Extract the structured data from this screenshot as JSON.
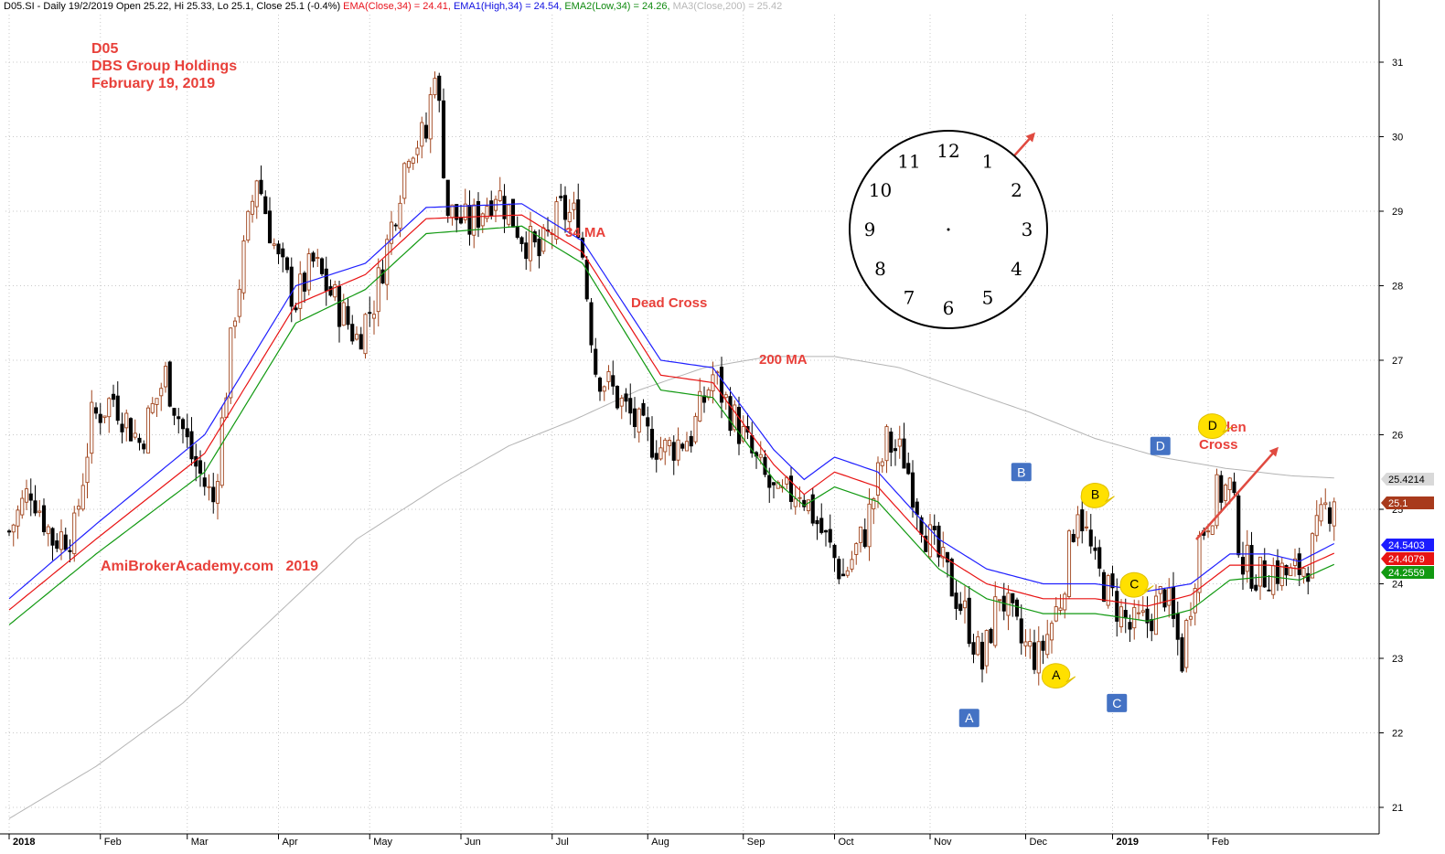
{
  "header": {
    "symbol_info": "D05.SI - Daily 19/2/2019 Open 25.22, Hi 25.33, Lo 25.1, Close 25.1 (-0.4%)",
    "ema_close": "EMA(Close,34) = 24.41,",
    "ema_high": "EMA1(High,34) = 24.54,",
    "ema_low": "EMA2(Low,34) = 24.26,",
    "ma200": "MA3(Close,200) = 25.42",
    "colors": {
      "ema_close": "#e8141e",
      "ema_high": "#1010e0",
      "ema_low": "#108a10",
      "ma200": "#b8b8b8"
    }
  },
  "chart_data": {
    "type": "candlestick",
    "title_lines": [
      "D05",
      "DBS Group Holdings",
      "February 19, 2019"
    ],
    "watermark": "AmiBrokerAcademy.com   2019",
    "ylim": [
      20.6,
      31.8
    ],
    "y_ticks": [
      21,
      22,
      23,
      24,
      25,
      26,
      27,
      28,
      29,
      30,
      31
    ],
    "x_month_labels": [
      {
        "label": "2018",
        "index": 0,
        "bold": true
      },
      {
        "label": "Feb",
        "index": 21
      },
      {
        "label": "Mar",
        "index": 41
      },
      {
        "label": "Apr",
        "index": 62
      },
      {
        "label": "May",
        "index": 83
      },
      {
        "label": "Jun",
        "index": 104
      },
      {
        "label": "Jul",
        "index": 125
      },
      {
        "label": "Aug",
        "index": 147
      },
      {
        "label": "Sep",
        "index": 169
      },
      {
        "label": "Oct",
        "index": 190
      },
      {
        "label": "Nov",
        "index": 212
      },
      {
        "label": "Dec",
        "index": 234
      },
      {
        "label": "2019",
        "index": 254,
        "bold": true
      },
      {
        "label": "Feb",
        "index": 276
      }
    ],
    "close_path": [
      [
        0,
        24.7
      ],
      [
        5,
        25.3
      ],
      [
        10,
        24.6
      ],
      [
        15,
        24.7
      ],
      [
        19,
        26.2
      ],
      [
        24,
        26.5
      ],
      [
        30,
        25.9
      ],
      [
        36,
        26.8
      ],
      [
        42,
        25.7
      ],
      [
        47,
        25.1
      ],
      [
        52,
        27.7
      ],
      [
        57,
        29.5
      ],
      [
        62,
        28.3
      ],
      [
        66,
        27.8
      ],
      [
        70,
        28.3
      ],
      [
        75,
        27.8
      ],
      [
        80,
        27.3
      ],
      [
        84,
        27.8
      ],
      [
        88,
        28.8
      ],
      [
        92,
        29.9
      ],
      [
        96,
        30.0
      ],
      [
        98,
        31.0
      ],
      [
        101,
        29.0
      ],
      [
        106,
        28.8
      ],
      [
        112,
        29.3
      ],
      [
        118,
        28.7
      ],
      [
        122,
        28.4
      ],
      [
        127,
        29.0
      ],
      [
        131,
        28.9
      ],
      [
        135,
        26.9
      ],
      [
        140,
        26.5
      ],
      [
        146,
        26.0
      ],
      [
        151,
        25.8
      ],
      [
        157,
        26.0
      ],
      [
        162,
        26.8
      ],
      [
        167,
        26.2
      ],
      [
        172,
        25.6
      ],
      [
        177,
        25.1
      ],
      [
        182,
        25.3
      ],
      [
        187,
        24.7
      ],
      [
        192,
        24.1
      ],
      [
        197,
        24.7
      ],
      [
        202,
        25.9
      ],
      [
        206,
        25.7
      ],
      [
        211,
        24.7
      ],
      [
        216,
        24.1
      ],
      [
        220,
        23.6
      ],
      [
        224,
        22.9
      ],
      [
        228,
        23.9
      ],
      [
        233,
        23.2
      ],
      [
        237,
        23.0
      ],
      [
        242,
        23.8
      ],
      [
        246,
        25.1
      ],
      [
        250,
        24.2
      ],
      [
        254,
        23.8
      ],
      [
        258,
        23.4
      ],
      [
        262,
        23.5
      ],
      [
        266,
        23.9
      ],
      [
        270,
        23.0
      ],
      [
        274,
        24.6
      ],
      [
        278,
        25.2
      ],
      [
        281,
        25.3
      ],
      [
        284,
        24.3
      ],
      [
        288,
        24.1
      ],
      [
        291,
        24.2
      ],
      [
        295,
        24.1
      ],
      [
        299,
        24.3
      ],
      [
        303,
        25.0
      ],
      [
        305,
        25.1
      ]
    ],
    "ema_high_path": [
      [
        0,
        23.8
      ],
      [
        20,
        24.8
      ],
      [
        45,
        26.0
      ],
      [
        66,
        28.0
      ],
      [
        82,
        28.3
      ],
      [
        96,
        29.05
      ],
      [
        118,
        29.1
      ],
      [
        132,
        28.6
      ],
      [
        150,
        27.0
      ],
      [
        162,
        26.9
      ],
      [
        176,
        25.8
      ],
      [
        183,
        25.4
      ],
      [
        190,
        25.7
      ],
      [
        200,
        25.5
      ],
      [
        214,
        24.6
      ],
      [
        225,
        24.2
      ],
      [
        238,
        24.0
      ],
      [
        250,
        24.0
      ],
      [
        262,
        23.9
      ],
      [
        272,
        24.0
      ],
      [
        281,
        24.4
      ],
      [
        290,
        24.4
      ],
      [
        297,
        24.3
      ],
      [
        305,
        24.54
      ]
    ],
    "ema_close_path": [
      [
        0,
        23.65
      ],
      [
        20,
        24.6
      ],
      [
        45,
        25.75
      ],
      [
        66,
        27.75
      ],
      [
        82,
        28.15
      ],
      [
        96,
        28.9
      ],
      [
        118,
        28.95
      ],
      [
        132,
        28.45
      ],
      [
        150,
        26.8
      ],
      [
        162,
        26.7
      ],
      [
        176,
        25.6
      ],
      [
        183,
        25.2
      ],
      [
        190,
        25.5
      ],
      [
        200,
        25.3
      ],
      [
        214,
        24.4
      ],
      [
        225,
        24.0
      ],
      [
        238,
        23.8
      ],
      [
        250,
        23.8
      ],
      [
        262,
        23.7
      ],
      [
        272,
        23.85
      ],
      [
        281,
        24.25
      ],
      [
        290,
        24.25
      ],
      [
        297,
        24.2
      ],
      [
        305,
        24.41
      ]
    ],
    "ema_low_path": [
      [
        0,
        23.45
      ],
      [
        20,
        24.4
      ],
      [
        45,
        25.5
      ],
      [
        66,
        27.5
      ],
      [
        82,
        27.95
      ],
      [
        96,
        28.7
      ],
      [
        118,
        28.8
      ],
      [
        132,
        28.3
      ],
      [
        150,
        26.6
      ],
      [
        162,
        26.5
      ],
      [
        176,
        25.4
      ],
      [
        183,
        25.05
      ],
      [
        190,
        25.3
      ],
      [
        200,
        25.1
      ],
      [
        214,
        24.2
      ],
      [
        225,
        23.8
      ],
      [
        238,
        23.6
      ],
      [
        250,
        23.6
      ],
      [
        262,
        23.5
      ],
      [
        272,
        23.65
      ],
      [
        281,
        24.05
      ],
      [
        290,
        24.1
      ],
      [
        297,
        24.05
      ],
      [
        305,
        24.26
      ]
    ],
    "ma200_path": [
      [
        0,
        20.85
      ],
      [
        20,
        21.55
      ],
      [
        40,
        22.4
      ],
      [
        60,
        23.5
      ],
      [
        80,
        24.6
      ],
      [
        100,
        25.35
      ],
      [
        115,
        25.85
      ],
      [
        130,
        26.2
      ],
      [
        145,
        26.6
      ],
      [
        160,
        26.9
      ],
      [
        175,
        27.05
      ],
      [
        190,
        27.05
      ],
      [
        205,
        26.9
      ],
      [
        220,
        26.6
      ],
      [
        235,
        26.3
      ],
      [
        250,
        25.95
      ],
      [
        265,
        25.7
      ],
      [
        280,
        25.55
      ],
      [
        295,
        25.45
      ],
      [
        305,
        25.42
      ]
    ],
    "price_tags": [
      {
        "label": "25.4214",
        "value": 25.4214,
        "bg": "#d9d9d9",
        "fg": "#000000"
      },
      {
        "label": "25.1",
        "value": 25.1,
        "bg": "#a83a1c",
        "fg": "#ffffff"
      },
      {
        "label": "24.5403",
        "value": 24.5403,
        "bg": "#1c1cff",
        "fg": "#ffffff"
      },
      {
        "label": "24.4079",
        "value": 24.4079,
        "bg": "#e81414",
        "fg": "#ffffff"
      },
      {
        "label": "24.2559",
        "value": 24.2559,
        "bg": "#119911",
        "fg": "#ffffff"
      }
    ],
    "annotations": {
      "ma34": "34 MA",
      "dead_cross": "Dead Cross",
      "ma200": "200 MA",
      "golden_cross_1": "Golden",
      "golden_cross_2": "Cross"
    },
    "box_labels": [
      {
        "label": "A",
        "index": 221,
        "value": 22.2
      },
      {
        "label": "B",
        "index": 233,
        "value": 25.5
      },
      {
        "label": "C",
        "index": 255,
        "value": 22.4
      },
      {
        "label": "D",
        "index": 265,
        "value": 25.85
      }
    ],
    "callout_labels": [
      {
        "label": "A",
        "index": 241,
        "value": 22.78
      },
      {
        "label": "B",
        "index": 250,
        "value": 25.2
      },
      {
        "label": "C",
        "index": 259,
        "value": 24.0
      },
      {
        "label": "D",
        "index": 277,
        "value": 26.13
      }
    ],
    "clock_numbers": [
      "12",
      "1",
      "2",
      "3",
      "4",
      "5",
      "6",
      "7",
      "8",
      "9",
      "10",
      "11"
    ]
  }
}
